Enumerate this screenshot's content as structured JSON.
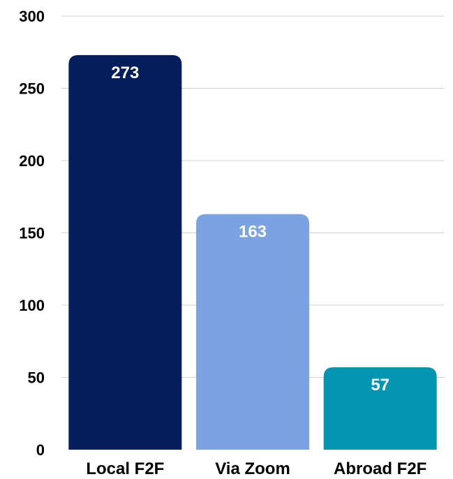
{
  "chart_data": {
    "type": "bar",
    "title": "",
    "xlabel": "",
    "ylabel": "",
    "categories": [
      "Local F2F",
      "Via Zoom",
      "Abroad F2F"
    ],
    "values": [
      273,
      163,
      57
    ],
    "data_labels": [
      "273",
      "163",
      "57"
    ],
    "colors": [
      "#041e5c",
      "#7ba3e1",
      "#0396b2"
    ],
    "ylim": [
      0,
      300
    ],
    "yticks": [
      0,
      50,
      100,
      150,
      200,
      250,
      300
    ],
    "ytick_labels": [
      "0",
      "50",
      "100",
      "150",
      "200",
      "250",
      "300"
    ],
    "grid": true,
    "legend": "none"
  }
}
